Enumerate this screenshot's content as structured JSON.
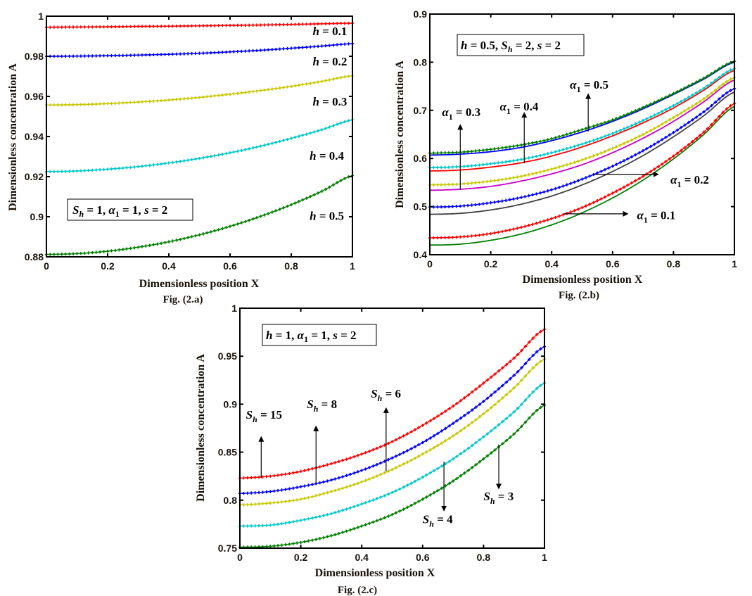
{
  "chart_data": [
    {
      "id": "a",
      "type": "line",
      "caption": "Fig. (2.a)",
      "xlabel": "Dimensionless position X",
      "ylabel": "Dimensionless concentration A",
      "xlim": [
        0,
        1
      ],
      "ylim": [
        0.88,
        1
      ],
      "xticks": [
        0,
        0.2,
        0.4,
        0.6,
        0.8,
        1
      ],
      "xtick_labels": [
        "0",
        "0.2",
        "0.4",
        "0.6",
        "0.8",
        "1"
      ],
      "yticks": [
        0.88,
        0.9,
        0.92,
        0.94,
        0.96,
        0.98,
        1
      ],
      "ytick_labels": [
        "0.88",
        "0.9",
        "0.92",
        "0.94",
        "0.96",
        "0.98",
        "1"
      ],
      "grid": false,
      "parameter_box": "S_h = 1, α_1 = 1, s = 2",
      "x": [
        0,
        0.1,
        0.2,
        0.3,
        0.4,
        0.5,
        0.6,
        0.7,
        0.8,
        0.9,
        1
      ],
      "series": [
        {
          "name": "h = 0.1",
          "color": "#ff0000",
          "style": "marker",
          "values": [
            0.9945,
            0.9946,
            0.9947,
            0.9949,
            0.995,
            0.9952,
            0.9954,
            0.9956,
            0.9959,
            0.9962,
            0.9965
          ]
        },
        {
          "name": "h = 0.2",
          "color": "#0000ff",
          "style": "marker",
          "values": [
            0.98,
            0.9801,
            0.9803,
            0.9806,
            0.981,
            0.9815,
            0.9822,
            0.983,
            0.984,
            0.9851,
            0.9863
          ]
        },
        {
          "name": "h = 0.3",
          "color": "#c8c800",
          "style": "marker",
          "values": [
            0.9557,
            0.9559,
            0.9564,
            0.9572,
            0.9582,
            0.9595,
            0.9611,
            0.9629,
            0.965,
            0.9675,
            0.9703
          ]
        },
        {
          "name": "h = 0.4",
          "color": "#00c8c8",
          "style": "marker",
          "values": [
            0.9225,
            0.9228,
            0.9237,
            0.925,
            0.9268,
            0.9291,
            0.9319,
            0.9352,
            0.9391,
            0.9434,
            0.9483
          ]
        },
        {
          "name": "h = 0.5",
          "color": "#008000",
          "style": "marker",
          "values": [
            0.8812,
            0.8816,
            0.8828,
            0.8848,
            0.8875,
            0.891,
            0.8952,
            0.9002,
            0.906,
            0.9127,
            0.9205
          ]
        }
      ],
      "annotations": [
        {
          "text": "h = 0.1",
          "x": 0.87,
          "y": 0.9905
        },
        {
          "text": "h = 0.2",
          "x": 0.87,
          "y": 0.9755
        },
        {
          "text": "h = 0.3",
          "x": 0.87,
          "y": 0.9555
        },
        {
          "text": "h = 0.4",
          "x": 0.86,
          "y": 0.9285
        },
        {
          "text": "h = 0.5",
          "x": 0.86,
          "y": 0.8985
        }
      ]
    },
    {
      "id": "b",
      "type": "line",
      "caption": "Fig. (2.b)",
      "xlabel": "Dimensionless position X",
      "ylabel": "Dimensionless concentration A",
      "xlim": [
        0,
        1
      ],
      "ylim": [
        0.4,
        0.9
      ],
      "xticks": [
        0,
        0.2,
        0.4,
        0.6,
        0.8,
        1
      ],
      "xtick_labels": [
        "0",
        "0.2",
        "0.4",
        "0.6",
        "0.8",
        "1"
      ],
      "yticks": [
        0.4,
        0.5,
        0.6,
        0.7,
        0.8,
        0.9
      ],
      "ytick_labels": [
        "0.4",
        "0.5",
        "0.6",
        "0.7",
        "0.8",
        "0.9"
      ],
      "grid": false,
      "parameter_box": "h = 0.5, S_h = 2, s = 2",
      "x": [
        0,
        0.1,
        0.2,
        0.3,
        0.4,
        0.5,
        0.6,
        0.7,
        0.8,
        0.9,
        1
      ],
      "series": [
        {
          "name": "α_1 = 0.5 (marker)",
          "color": "#008000",
          "style": "marker",
          "values": [
            0.611,
            0.613,
            0.619,
            0.628,
            0.641,
            0.66,
            0.68,
            0.706,
            0.735,
            0.767,
            0.802
          ]
        },
        {
          "name": "α_1 = 0.5 (solid)",
          "color": "#0000ff",
          "style": "solid",
          "values": [
            0.607,
            0.609,
            0.614,
            0.623,
            0.637,
            0.655,
            0.677,
            0.703,
            0.733,
            0.765,
            0.8
          ]
        },
        {
          "name": "α_1 = 0.4 (marker)",
          "color": "#00c8c8",
          "style": "marker",
          "values": [
            0.581,
            0.583,
            0.589,
            0.598,
            0.612,
            0.63,
            0.652,
            0.679,
            0.71,
            0.746,
            0.787
          ]
        },
        {
          "name": "α_1 = 0.4 (solid)",
          "color": "#ff0000",
          "style": "solid",
          "values": [
            0.574,
            0.576,
            0.582,
            0.591,
            0.605,
            0.624,
            0.647,
            0.674,
            0.705,
            0.742,
            0.783
          ]
        },
        {
          "name": "α_1 = 0.3 (marker)",
          "color": "#c8c800",
          "style": "marker",
          "values": [
            0.545,
            0.547,
            0.553,
            0.563,
            0.578,
            0.597,
            0.621,
            0.65,
            0.685,
            0.724,
            0.768
          ]
        },
        {
          "name": "α_1 = 0.3 (solid)",
          "color": "#c800c8",
          "style": "solid",
          "values": [
            0.534,
            0.536,
            0.542,
            0.553,
            0.568,
            0.587,
            0.612,
            0.642,
            0.677,
            0.718,
            0.763
          ]
        },
        {
          "name": "α_1 = 0.2 (marker)",
          "color": "#0000ff",
          "style": "marker",
          "values": [
            0.499,
            0.501,
            0.508,
            0.519,
            0.535,
            0.557,
            0.584,
            0.616,
            0.654,
            0.697,
            0.745
          ]
        },
        {
          "name": "α_1 = 0.2 (solid)",
          "color": "#404040",
          "style": "solid",
          "values": [
            0.484,
            0.486,
            0.493,
            0.505,
            0.522,
            0.545,
            0.573,
            0.606,
            0.645,
            0.689,
            0.738
          ]
        },
        {
          "name": "α_1 = 0.1 (marker)",
          "color": "#ff0000",
          "style": "marker",
          "values": [
            0.435,
            0.437,
            0.444,
            0.457,
            0.475,
            0.498,
            0.528,
            0.563,
            0.605,
            0.655,
            0.714
          ]
        },
        {
          "name": "α_1 = 0.1 (solid)",
          "color": "#008000",
          "style": "solid",
          "values": [
            0.42,
            0.422,
            0.43,
            0.443,
            0.462,
            0.487,
            0.518,
            0.555,
            0.599,
            0.65,
            0.708
          ]
        }
      ],
      "annotations": [
        {
          "text": "α_1 = 0.5",
          "x": 0.46,
          "y": 0.745
        },
        {
          "text": "α_1 = 0.4",
          "x": 0.23,
          "y": 0.7
        },
        {
          "text": "α_1 = 0.3",
          "x": 0.04,
          "y": 0.688
        },
        {
          "text": "α_1 = 0.2",
          "x": 0.79,
          "y": 0.548
        },
        {
          "text": "α_1 = 0.1",
          "x": 0.68,
          "y": 0.474
        }
      ],
      "arrows": [
        {
          "label": "α_1 = 0.5",
          "from": [
            0.52,
            0.656
          ],
          "to": [
            0.52,
            0.734
          ]
        },
        {
          "label": "α_1 = 0.4",
          "from": [
            0.31,
            0.59
          ],
          "to": [
            0.31,
            0.695
          ]
        },
        {
          "label": "α_1 = 0.3",
          "from": [
            0.1,
            0.535
          ],
          "to": [
            0.1,
            0.67
          ]
        },
        {
          "label": "α_1 = 0.2",
          "from": [
            0.54,
            0.567
          ],
          "to": [
            0.75,
            0.567
          ]
        },
        {
          "label": "α_1 = 0.1",
          "from": [
            0.44,
            0.485
          ],
          "to": [
            0.65,
            0.485
          ]
        }
      ]
    },
    {
      "id": "c",
      "type": "line",
      "caption": "Fig. (2.c)",
      "xlabel": "Dimensionless position X",
      "ylabel": "Dimensionless concentration A",
      "xlim": [
        0,
        1
      ],
      "ylim": [
        0.75,
        1
      ],
      "xticks": [
        0,
        0.2,
        0.4,
        0.6,
        0.8,
        1
      ],
      "xtick_labels": [
        "0",
        "0.2",
        "0.4",
        "0.6",
        "0.8",
        "1"
      ],
      "yticks": [
        0.75,
        0.8,
        0.85,
        0.9,
        0.95,
        1
      ],
      "ytick_labels": [
        "0.75",
        "0.8",
        "0.85",
        "0.9",
        "0.95",
        "1"
      ],
      "grid": false,
      "parameter_box": "h = 1, α_1 = 1, s = 2",
      "x": [
        0,
        0.1,
        0.2,
        0.3,
        0.4,
        0.5,
        0.6,
        0.7,
        0.8,
        0.9,
        1
      ],
      "series": [
        {
          "name": "S_h = 15",
          "color": "#ff0000",
          "style": "marker",
          "values": [
            0.823,
            0.825,
            0.83,
            0.838,
            0.848,
            0.861,
            0.878,
            0.898,
            0.922,
            0.948,
            0.978
          ]
        },
        {
          "name": "S_h = 8",
          "color": "#0000ff",
          "style": "marker",
          "values": [
            0.807,
            0.809,
            0.814,
            0.821,
            0.831,
            0.844,
            0.86,
            0.88,
            0.903,
            0.93,
            0.96
          ]
        },
        {
          "name": "S_h = 6",
          "color": "#c8c800",
          "style": "marker",
          "values": [
            0.795,
            0.797,
            0.801,
            0.809,
            0.819,
            0.832,
            0.848,
            0.867,
            0.89,
            0.917,
            0.947
          ]
        },
        {
          "name": "S_h = 4",
          "color": "#00c8c8",
          "style": "marker",
          "values": [
            0.773,
            0.774,
            0.779,
            0.786,
            0.796,
            0.808,
            0.824,
            0.843,
            0.866,
            0.892,
            0.922
          ]
        },
        {
          "name": "S_h = 3",
          "color": "#008000",
          "style": "marker",
          "values": [
            0.751,
            0.752,
            0.756,
            0.763,
            0.773,
            0.785,
            0.801,
            0.82,
            0.843,
            0.869,
            0.899
          ]
        }
      ],
      "annotations": [
        {
          "text": "S_h = 15",
          "x": 0.02,
          "y": 0.885
        },
        {
          "text": "S_h = 8",
          "x": 0.22,
          "y": 0.896
        },
        {
          "text": "S_h = 6",
          "x": 0.43,
          "y": 0.907
        },
        {
          "text": "S_h = 4",
          "x": 0.6,
          "y": 0.776
        },
        {
          "text": "S_h = 3",
          "x": 0.8,
          "y": 0.8
        }
      ],
      "arrows": [
        {
          "label": "S_h = 15",
          "from": [
            0.07,
            0.823
          ],
          "to": [
            0.07,
            0.866
          ]
        },
        {
          "label": "S_h = 8",
          "from": [
            0.25,
            0.816
          ],
          "to": [
            0.25,
            0.877
          ]
        },
        {
          "label": "S_h = 6",
          "from": [
            0.48,
            0.83
          ],
          "to": [
            0.48,
            0.896
          ]
        },
        {
          "label": "S_h = 4",
          "from": [
            0.67,
            0.84
          ],
          "to": [
            0.67,
            0.789
          ]
        },
        {
          "label": "S_h = 3",
          "from": [
            0.85,
            0.858
          ],
          "to": [
            0.85,
            0.812
          ]
        }
      ]
    }
  ]
}
